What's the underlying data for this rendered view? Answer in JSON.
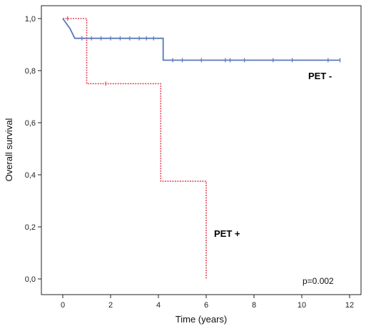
{
  "chart_data": {
    "type": "line",
    "step": true,
    "xlabel": "Time (years)",
    "ylabel": "Overall survival",
    "xlim": [
      -0.6,
      12.4
    ],
    "ylim": [
      0,
      1
    ],
    "xticks": [
      "0",
      "2",
      "4",
      "6",
      "8",
      "10",
      "12"
    ],
    "xtick_values": [
      0,
      2,
      4,
      6,
      8,
      10,
      12
    ],
    "yticks": [
      "0,0",
      "0,2",
      "0,4",
      "0,6",
      "0,8",
      "1,0"
    ],
    "ytick_values": [
      0,
      0.2,
      0.4,
      0.6,
      0.8,
      1.0
    ],
    "grid": false,
    "annotation": "p=0.002",
    "series": [
      {
        "name": "PET -",
        "color": "#5b77b8",
        "style": "solid",
        "steps": [
          [
            0,
            1.0
          ],
          [
            0.3,
            0.962
          ],
          [
            0.5,
            0.924
          ],
          [
            4.2,
            0.924
          ],
          [
            4.2,
            0.84
          ],
          [
            11.6,
            0.84
          ]
        ],
        "censored": [
          [
            0.2,
            1.0
          ],
          [
            0.8,
            0.924
          ],
          [
            1.2,
            0.924
          ],
          [
            1.6,
            0.924
          ],
          [
            2.0,
            0.924
          ],
          [
            2.4,
            0.924
          ],
          [
            2.8,
            0.924
          ],
          [
            3.2,
            0.924
          ],
          [
            3.5,
            0.924
          ],
          [
            3.8,
            0.924
          ],
          [
            4.6,
            0.84
          ],
          [
            5.0,
            0.84
          ],
          [
            5.8,
            0.84
          ],
          [
            6.8,
            0.84
          ],
          [
            7.0,
            0.84
          ],
          [
            7.6,
            0.84
          ],
          [
            8.8,
            0.84
          ],
          [
            9.6,
            0.84
          ],
          [
            11.1,
            0.84
          ],
          [
            11.6,
            0.84
          ]
        ]
      },
      {
        "name": "PET +",
        "color": "#e8495a",
        "style": "dotted",
        "steps": [
          [
            0,
            1.0
          ],
          [
            1.0,
            1.0
          ],
          [
            1.0,
            0.75
          ],
          [
            4.1,
            0.75
          ],
          [
            4.1,
            0.375
          ],
          [
            6.0,
            0.375
          ],
          [
            6.0,
            0.0
          ]
        ],
        "censored": [
          [
            1.8,
            0.75
          ]
        ]
      }
    ]
  }
}
